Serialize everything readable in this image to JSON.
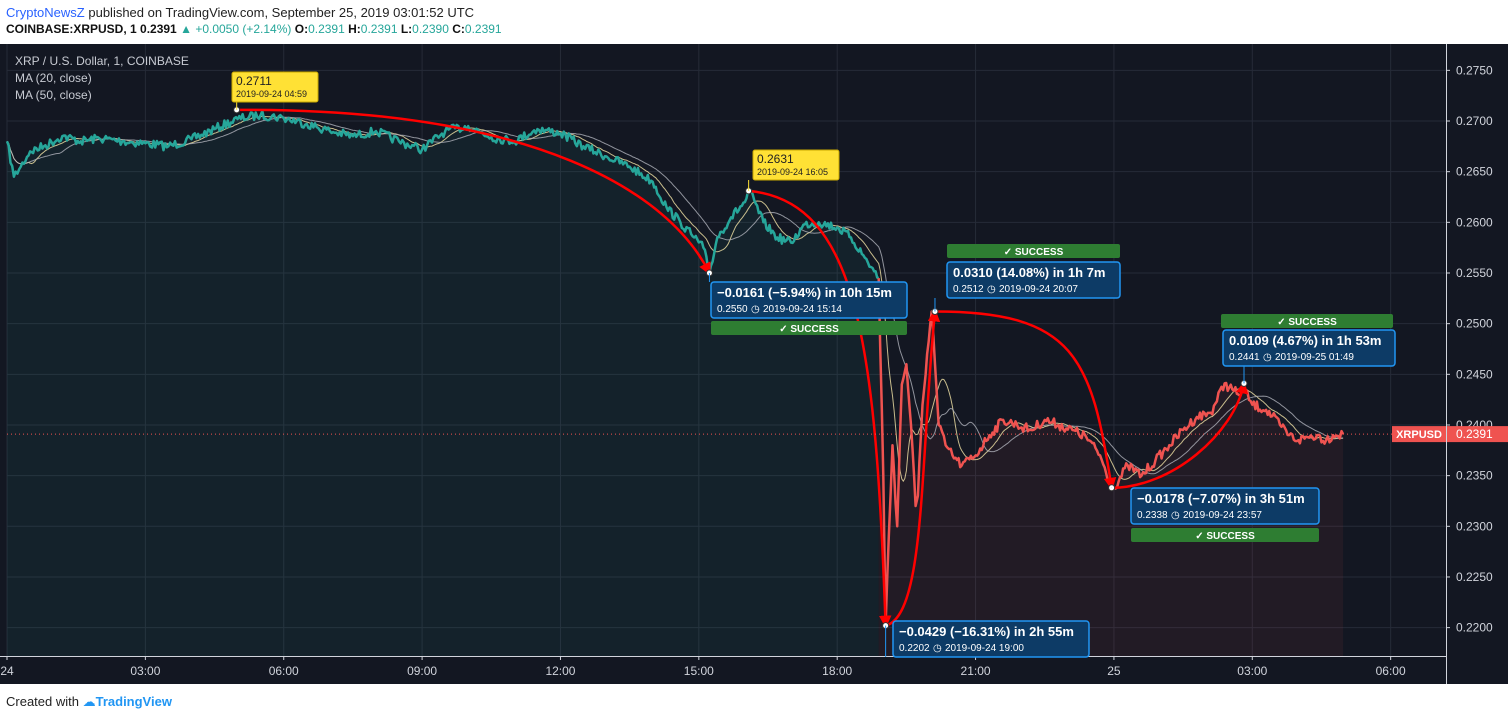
{
  "header": {
    "publisher": "CryptoNewsZ",
    "published_text": " published on TradingView.com, September 25, 2019 03:01:52 UTC",
    "symbol": "COINBASE:XRPUSD, 1",
    "last": "0.2391",
    "change": "+0.0050 (+2.14%)",
    "o_label": "O:",
    "o": "0.2391",
    "h_label": "H:",
    "h": "0.2391",
    "l_label": "L:",
    "l": "0.2390",
    "c_label": "C:",
    "c": "0.2391"
  },
  "legend": {
    "title": "XRP / U.S. Dollar, 1, COINBASE",
    "ma20": "MA (20, close)",
    "ma50": "MA (50, close)"
  },
  "footer": {
    "created_with": "Created with",
    "brand": "TradingView"
  },
  "colors": {
    "background": "#131722",
    "up": "#26a69a",
    "down": "#ef5350",
    "callout_fill": "#0d3b66",
    "callout_border": "#2196f3",
    "success": "#2e7d32",
    "yellow": "#ffe135",
    "trend": "#ff0000"
  },
  "chart_data": {
    "type": "line",
    "title": "XRP / U.S. Dollar, 1, COINBASE",
    "price_label": "XRPUSD",
    "last_price": 0.2391,
    "y_ticks": [
      0.22,
      0.225,
      0.23,
      0.235,
      0.24,
      0.245,
      0.25,
      0.255,
      0.26,
      0.265,
      0.27,
      0.275
    ],
    "y_tick_labels": [
      "0.2200",
      "0.2250",
      "0.2300",
      "0.2350",
      "0.2400",
      "0.2450",
      "0.2500",
      "0.2550",
      "0.2600",
      "0.2650",
      "0.2700",
      "0.2750"
    ],
    "ylim": [
      0.2172,
      0.2776
    ],
    "x_tick_labels": [
      "24",
      "03:00",
      "06:00",
      "09:00",
      "12:00",
      "15:00",
      "18:00",
      "21:00",
      "25",
      "03:00",
      "06:00"
    ],
    "x_tick_hours": [
      0,
      3,
      6,
      9,
      12,
      15,
      18,
      21,
      24,
      27,
      30
    ],
    "xlim_hours": [
      0,
      31.2
    ],
    "series": [
      {
        "x_hours": [
          0,
          0.15,
          0.3,
          0.5,
          0.8,
          1.2,
          1.6,
          2,
          2.5,
          3,
          3.5,
          4,
          4.5,
          5,
          5.5,
          6,
          6.5,
          7,
          7.5,
          8,
          8.5,
          9,
          9.5,
          10,
          10.5,
          11,
          11.5,
          12,
          12.5,
          13,
          13.5,
          14,
          14.3,
          14.6,
          14.9,
          15.1,
          15.23,
          15.4,
          15.7,
          16,
          16.1,
          16.4,
          16.7,
          17,
          17.3,
          17.6,
          18,
          18.3,
          18.6,
          18.9
        ],
        "price": [
          0.268,
          0.2645,
          0.2655,
          0.267,
          0.2675,
          0.2685,
          0.268,
          0.2683,
          0.268,
          0.2678,
          0.2675,
          0.2682,
          0.2692,
          0.2702,
          0.2706,
          0.2703,
          0.2697,
          0.269,
          0.2685,
          0.269,
          0.268,
          0.2672,
          0.269,
          0.2695,
          0.2684,
          0.268,
          0.2692,
          0.2688,
          0.2675,
          0.2665,
          0.2655,
          0.264,
          0.2615,
          0.26,
          0.2585,
          0.2575,
          0.255,
          0.2585,
          0.2605,
          0.262,
          0.2631,
          0.26,
          0.2585,
          0.258,
          0.2598,
          0.26,
          0.2595,
          0.2585,
          0.2565,
          0.2545
        ]
      },
      {
        "x_hours": [
          18.9,
          19.0,
          19.05,
          19.12,
          19.2,
          19.3,
          19.4,
          19.5,
          19.6,
          19.7,
          19.75,
          19.85,
          19.95,
          20.05,
          20.12,
          20.2,
          20.35,
          20.5,
          20.7,
          21.0,
          21.3,
          21.6,
          21.9,
          22.2,
          22.5,
          22.8,
          23.1,
          23.4,
          23.7,
          23.9,
          24.0,
          24.3,
          24.6,
          24.9,
          25.2,
          25.5,
          25.8,
          26.1,
          26.4,
          26.7,
          26.82,
          27.0,
          27.3,
          27.6,
          27.8,
          28.0,
          28.2,
          28.4,
          28.6,
          28.75,
          28.97
        ],
        "price": [
          0.2545,
          0.235,
          0.2202,
          0.229,
          0.238,
          0.23,
          0.244,
          0.246,
          0.24,
          0.232,
          0.233,
          0.242,
          0.247,
          0.2512,
          0.246,
          0.24,
          0.238,
          0.237,
          0.236,
          0.237,
          0.239,
          0.2405,
          0.24,
          0.2395,
          0.2405,
          0.24,
          0.2395,
          0.2388,
          0.237,
          0.2345,
          0.2338,
          0.236,
          0.235,
          0.2365,
          0.238,
          0.2395,
          0.2408,
          0.2412,
          0.2441,
          0.243,
          0.2435,
          0.242,
          0.2415,
          0.24,
          0.239,
          0.2385,
          0.2388,
          0.239,
          0.2385,
          0.239,
          0.2391
        ]
      }
    ],
    "price_points": [
      {
        "value": "0.2711",
        "time": "2019-09-24 04:59"
      },
      {
        "value": "0.2631",
        "time": "2019-09-24 16:05"
      }
    ],
    "callouts": [
      {
        "change": "−0.0161 (−5.94%) in 10h 15m",
        "price": "0.2550",
        "time": "2019-09-24  15:14",
        "status": "SUCCESS"
      },
      {
        "change": "−0.0429 (−16.31%) in 2h 55m",
        "price": "0.2202",
        "time": "2019-09-24  19:00",
        "status": ""
      },
      {
        "change": "0.0310 (14.08%) in 1h 7m",
        "price": "0.2512",
        "time": "2019-09-24  20:07",
        "status": "SUCCESS"
      },
      {
        "change": "−0.0178 (−7.07%) in 3h 51m",
        "price": "0.2338",
        "time": "2019-09-24  23:57",
        "status": "SUCCESS"
      },
      {
        "change": "0.0109 (4.67%) in 1h 53m",
        "price": "0.2441",
        "time": "2019-09-25  01:49",
        "status": "SUCCESS"
      }
    ]
  }
}
